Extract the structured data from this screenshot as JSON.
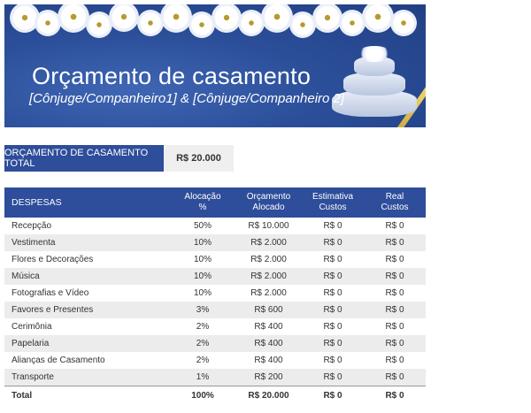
{
  "banner": {
    "title": "Orçamento de casamento",
    "subtitle": "[Cônjuge/Companheiro1] & [Cônjuge/Companheiro 2]"
  },
  "budget": {
    "label": "ORÇAMENTO DE CASAMENTO TOTAL",
    "value": "R$ 20.000"
  },
  "table": {
    "headers": {
      "expenses": "DESPESAS",
      "allocation_line1": "Alocação",
      "allocation_line2": "%",
      "allocated_line1": "Orçamento",
      "allocated_line2": "Alocado",
      "estimated_line1": "Estimativa",
      "estimated_line2": "Custos",
      "real_line1": "Real",
      "real_line2": "Custos"
    },
    "rows": [
      {
        "name": "Recepção",
        "pct": "50%",
        "allocated": "R$ 10.000",
        "estimated": "R$ 0",
        "real": "R$ 0"
      },
      {
        "name": "Vestimenta",
        "pct": "10%",
        "allocated": "R$ 2.000",
        "estimated": "R$ 0",
        "real": "R$ 0"
      },
      {
        "name": "Flores e Decorações",
        "pct": "10%",
        "allocated": "R$ 2.000",
        "estimated": "R$ 0",
        "real": "R$ 0"
      },
      {
        "name": "Música",
        "pct": "10%",
        "allocated": "R$ 2.000",
        "estimated": "R$ 0",
        "real": "R$ 0"
      },
      {
        "name": "Fotografias e Vídeo",
        "pct": "10%",
        "allocated": "R$ 2.000",
        "estimated": "R$ 0",
        "real": "R$ 0"
      },
      {
        "name": "Favores e Presentes",
        "pct": "3%",
        "allocated": "R$ 600",
        "estimated": "R$ 0",
        "real": "R$ 0"
      },
      {
        "name": "Cerimônia",
        "pct": "2%",
        "allocated": "R$ 400",
        "estimated": "R$ 0",
        "real": "R$ 0"
      },
      {
        "name": "Papelaria",
        "pct": "2%",
        "allocated": "R$ 400",
        "estimated": "R$ 0",
        "real": "R$ 0"
      },
      {
        "name": "Alianças de Casamento",
        "pct": "2%",
        "allocated": "R$ 400",
        "estimated": "R$ 0",
        "real": "R$ 0"
      },
      {
        "name": "Transporte",
        "pct": "1%",
        "allocated": "R$ 200",
        "estimated": "R$ 0",
        "real": "R$ 0"
      }
    ],
    "total": {
      "name": "Total",
      "pct": "100%",
      "allocated": "R$ 20.000",
      "estimated": "R$ 0",
      "real": "R$ 0"
    }
  },
  "colors": {
    "header_blue": "#2e4d9a",
    "banner_blue": "#2c4f9a",
    "alt_row": "#ececec",
    "accent_gold": "#c9a43a"
  }
}
